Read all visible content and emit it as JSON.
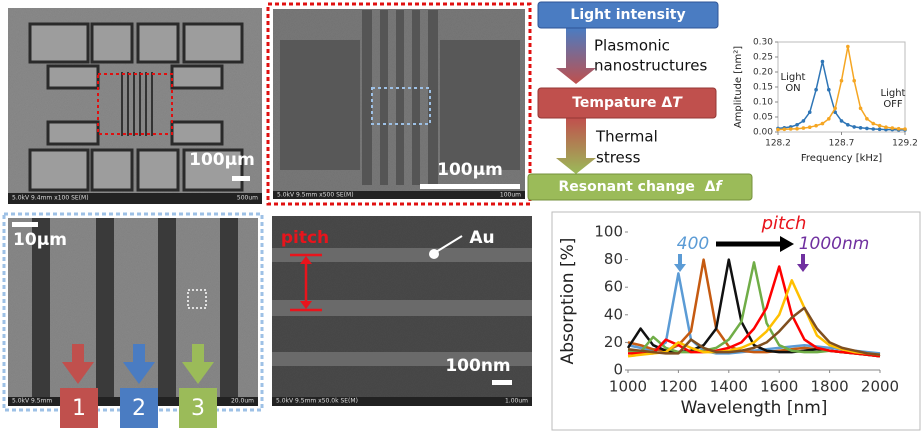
{
  "sem_images": [
    {
      "scale_bar": "100µm",
      "info": "5.0kV 9.4mm x100 SE(M)",
      "micron_bar": "500um"
    },
    {
      "scale_bar": "100µm",
      "info": "5.0kV 9.5mm x500 SE(M)",
      "micron_bar": "100um"
    },
    {
      "scale_bar": "10µm",
      "info": "5.0kV 9.5mm",
      "micron_bar": "20.0um",
      "markers": [
        "1",
        "2",
        "3"
      ]
    },
    {
      "scale_bar": "100nm",
      "info": "5.0kV 9.5mm x50.0k SE(M)",
      "micron_bar": "1.00um",
      "labels": [
        "pitch",
        "Au"
      ]
    }
  ],
  "flow": {
    "steps": [
      {
        "label": "Light intensity"
      },
      {
        "label": "Tempature Δ",
        "symbol": "T"
      },
      {
        "label": "Resonant change  Δ",
        "symbol": "f"
      }
    ],
    "transitions": [
      [
        "Plasmonic",
        "nanostructures"
      ],
      [
        "Thermal",
        "stress"
      ]
    ]
  },
  "chart_data": [
    {
      "type": "line",
      "xlabel": "Frequency [kHz]",
      "ylabel": "Amplitude [nm²]",
      "markers": true,
      "x": [
        128.2,
        128.25,
        128.3,
        128.35,
        128.4,
        128.45,
        128.5,
        128.55,
        128.6,
        128.65,
        128.7,
        128.75,
        128.8,
        128.85,
        128.9,
        128.95,
        129.0,
        129.05,
        129.1,
        129.15,
        129.2
      ],
      "series": [
        {
          "name": "Light ON",
          "color": "#2e75b6",
          "values": [
            0.012,
            0.014,
            0.017,
            0.024,
            0.037,
            0.066,
            0.141,
            0.235,
            0.141,
            0.066,
            0.037,
            0.024,
            0.017,
            0.014,
            0.012,
            0.01,
            0.009,
            0.008,
            0.008,
            0.007,
            0.007
          ]
        },
        {
          "name": "Light OFF",
          "color": "#f5a623",
          "values": [
            0.008,
            0.009,
            0.01,
            0.011,
            0.013,
            0.016,
            0.021,
            0.028,
            0.044,
            0.079,
            0.171,
            0.285,
            0.171,
            0.079,
            0.044,
            0.028,
            0.021,
            0.016,
            0.013,
            0.011,
            0.01
          ]
        }
      ],
      "xlim": [
        128.2,
        129.2
      ],
      "xticks": [
        128.2,
        128.7,
        129.2
      ],
      "ylim": [
        0,
        0.3
      ],
      "yticks": [
        {
          "value": 0,
          "label": "0.00"
        },
        0.05,
        {
          "value": 0.1,
          "label": "0.10"
        },
        0.15,
        {
          "value": 0.2,
          "label": "0.20"
        },
        0.25,
        {
          "value": 0.3,
          "label": "0.30"
        }
      ]
    },
    {
      "type": "line",
      "xlabel": "Wavelength [nm]",
      "ylabel": "Absorption [%]",
      "markers": false,
      "annotations": [
        {
          "text": "pitch",
          "color": "#e8141c"
        },
        {
          "text": "400",
          "color": "#5b9bd5"
        },
        {
          "text": "1000nm",
          "color": "#7030a0"
        }
      ],
      "x": [
        1000,
        1050,
        1100,
        1150,
        1200,
        1250,
        1300,
        1350,
        1400,
        1450,
        1500,
        1550,
        1600,
        1650,
        1700,
        1750,
        1800,
        1850,
        1900,
        1950,
        2000
      ],
      "series": [
        {
          "color": "#5b9bd5",
          "values": [
            18,
            16,
            14,
            20,
            70,
            22,
            14,
            12,
            12,
            13,
            14,
            15,
            16,
            17,
            18,
            17,
            16,
            15,
            14,
            13,
            12
          ]
        },
        {
          "color": "#c55a11",
          "values": [
            20,
            18,
            15,
            14,
            18,
            28,
            80,
            30,
            17,
            14,
            13,
            13,
            14,
            15,
            16,
            15,
            14,
            13,
            12,
            11,
            10
          ]
        },
        {
          "color": "#111111",
          "values": [
            16,
            30,
            18,
            14,
            13,
            14,
            18,
            30,
            80,
            35,
            18,
            14,
            13,
            13,
            14,
            15,
            14,
            13,
            12,
            11,
            10
          ]
        },
        {
          "color": "#70ad47",
          "values": [
            14,
            13,
            24,
            16,
            13,
            13,
            14,
            16,
            22,
            35,
            78,
            34,
            18,
            14,
            13,
            13,
            14,
            13,
            12,
            11,
            10
          ]
        },
        {
          "color": "#ff0000",
          "values": [
            12,
            12,
            12,
            22,
            18,
            13,
            13,
            14,
            16,
            20,
            30,
            45,
            75,
            40,
            22,
            16,
            14,
            13,
            12,
            11,
            10
          ]
        },
        {
          "color": "#ffc000",
          "values": [
            10,
            11,
            12,
            13,
            20,
            16,
            13,
            13,
            14,
            16,
            20,
            28,
            40,
            65,
            45,
            25,
            18,
            15,
            13,
            12,
            11
          ]
        },
        {
          "color": "#7f4f1f",
          "values": [
            15,
            14,
            13,
            12,
            12,
            22,
            16,
            13,
            13,
            14,
            16,
            20,
            28,
            38,
            45,
            30,
            20,
            16,
            14,
            12,
            11
          ]
        }
      ],
      "xlim": [
        1000,
        2000
      ],
      "xticks": [
        1000,
        1200,
        1400,
        1600,
        1800,
        2000
      ],
      "ylim": [
        0,
        100
      ],
      "yticks": [
        0,
        20,
        40,
        60,
        80,
        100
      ]
    }
  ]
}
